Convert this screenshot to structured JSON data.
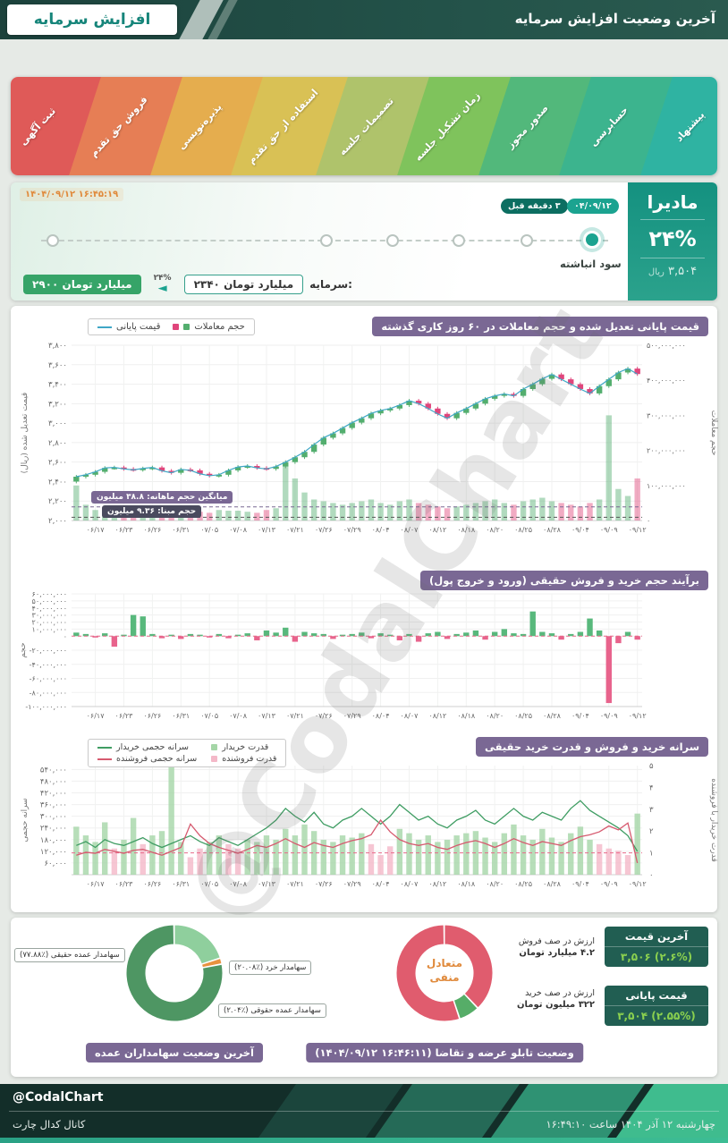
{
  "theme": {
    "teal": "#1ba390",
    "dark_teal": "#0c6e61",
    "green": "#36a468",
    "orange": "#e08a3c",
    "chip_purple": "#7a6894",
    "dark_badge": "#4a4a5e",
    "badge_text_teal": "#16857a",
    "price_badge_bg": "#215e52",
    "price_value_green": "#8bd14f"
  },
  "header": {
    "badge": "افزایش سرمایه",
    "title": "آخرین وضعیت افزایش سرمایه"
  },
  "ribbon": {
    "stages": [
      {
        "label": "پیشنهاد",
        "color": "#2fb3a2"
      },
      {
        "label": "حسابرسی",
        "color": "#3cb48e"
      },
      {
        "label": "صدور مجوز",
        "color": "#52b87b"
      },
      {
        "label": "زمان تشکیل جلسه",
        "color": "#7fc35c"
      },
      {
        "label": "تصمیمات جلسه",
        "color": "#afc36b"
      },
      {
        "label": "استفاده از حق تقدم",
        "color": "#d9c155"
      },
      {
        "label": "پذیره‌نویسی",
        "color": "#e5ad4e"
      },
      {
        "label": "فروش حق تقدم",
        "color": "#e67e55"
      },
      {
        "label": "ثبت آگهی",
        "color": "#df5a58"
      }
    ]
  },
  "timeline": {
    "timestamp": "۱۴۰۴/۰۹/۱۲ ۱۶:۴۵:۱۹",
    "active_date": "۰۴/۰۹/۱۲",
    "ago": "۳ دقیقه قبل",
    "active_label": "سود انباشته",
    "symbol": "مادیرا",
    "percent": "۲۴%",
    "price": "۳,۵۰۴",
    "rial": "ریال",
    "capital_label": "سرمایه:",
    "capital_before": "۲۳۴۰ میلیارد تومان",
    "capital_after": "۲۹۰۰ میلیارد تومان",
    "capital_change": "۲۴%"
  },
  "watermark": "@CodalChart",
  "chart_data": [
    {
      "type": "candlestick+volume",
      "title": "قیمت پایانی تعدیل شده و حجم معاملات در ۶۰ روز کاری گذشته",
      "legend_price": "قیمت پایانی",
      "legend_volume": "حجم معاملات",
      "ylabel_left": "قیمت تعدیل شده (ریال)",
      "ylabel_right": "حجم معاملات",
      "ylim_price": [
        2000,
        3800
      ],
      "price_ticks": [
        2000,
        2200,
        2400,
        2600,
        2800,
        3000,
        3200,
        3400,
        3600,
        3800
      ],
      "volume_ticks_million": [
        0,
        100,
        200,
        300,
        400,
        500
      ],
      "volume_max_million": 500,
      "open_first": 2400,
      "x_labels": [
        "۰۶/۱۷",
        "۰۶/۲۳",
        "۰۶/۲۶",
        "۰۶/۳۱",
        "۰۷/۰۵",
        "۰۷/۰۸",
        "۰۷/۱۳",
        "۰۷/۲۱",
        "۰۷/۲۶",
        "۰۷/۲۹",
        "۰۸/۰۴",
        "۰۸/۰۷",
        "۰۸/۱۲",
        "۰۸/۱۸",
        "۰۸/۲۰",
        "۰۸/۲۵",
        "۰۸/۲۸",
        "۰۹/۰۴",
        "۰۹/۰۹",
        "۰۹/۱۲"
      ],
      "closes": [
        2450,
        2470,
        2500,
        2540,
        2545,
        2530,
        2520,
        2535,
        2545,
        2510,
        2490,
        2525,
        2515,
        2480,
        2460,
        2470,
        2515,
        2550,
        2560,
        2540,
        2530,
        2555,
        2600,
        2650,
        2705,
        2780,
        2850,
        2895,
        2950,
        3005,
        3050,
        3100,
        3130,
        3150,
        3185,
        3230,
        3200,
        3150,
        3095,
        3050,
        3105,
        3150,
        3200,
        3250,
        3280,
        3300,
        3280,
        3350,
        3400,
        3455,
        3500,
        3450,
        3400,
        3350,
        3305,
        3380,
        3450,
        3520,
        3560,
        3504
      ],
      "volumes_million": [
        100,
        45,
        30,
        35,
        28,
        25,
        30,
        28,
        26,
        30,
        35,
        30,
        28,
        25,
        22,
        30,
        28,
        28,
        25,
        22,
        30,
        35,
        160,
        120,
        80,
        60,
        55,
        50,
        45,
        50,
        55,
        60,
        50,
        45,
        55,
        60,
        50,
        45,
        40,
        35,
        40,
        45,
        50,
        55,
        60,
        50,
        45,
        55,
        60,
        65,
        55,
        50,
        45,
        40,
        50,
        60,
        300,
        90,
        70,
        120
      ],
      "avg_volume_label": "میانگین حجم ماهانه: ۳۸.۸ میلیون",
      "avg_volume_million": 38.8,
      "base_volume_label": "حجم مبنا: ۹.۳۶ میلیون",
      "base_volume_million": 9.36,
      "color_up": "#53ae6e",
      "color_down": "#e0457b",
      "color_line": "#3fa7c6"
    },
    {
      "type": "bar",
      "title": "برآیند حجم خرید و فروش حقیقی (ورود و خروج پول)",
      "ylabel": "حجم",
      "unit": "million",
      "ylim_million": [
        -100,
        60
      ],
      "ticks_million": [
        60,
        50,
        40,
        30,
        20,
        10,
        0,
        -20,
        -40,
        -60,
        -80,
        -100
      ],
      "values_million": [
        5,
        3,
        -2,
        4,
        -15,
        2,
        30,
        28,
        3,
        -3,
        2,
        -4,
        3,
        2,
        -2,
        3,
        -3,
        2,
        4,
        -6,
        8,
        5,
        12,
        -8,
        6,
        4,
        3,
        -4,
        2,
        3,
        5,
        -3,
        4,
        2,
        -6,
        3,
        -8,
        4,
        6,
        -4,
        3,
        5,
        8,
        -5,
        6,
        10,
        4,
        3,
        35,
        6,
        4,
        -5,
        3,
        6,
        25,
        8,
        -95,
        -10,
        6,
        -5
      ],
      "color_pos": "#58b87c",
      "color_neg": "#e8638c"
    },
    {
      "type": "line+bar",
      "title": "سرانه خرید و فروش و قدرت خرید حقیقی",
      "ylabel_left": "سرانه حجمی",
      "ylabel_right": "قدرت خریدار با فروشنده",
      "legend": [
        {
          "label": "سرانه حجمی خریدار",
          "kind": "line",
          "color": "#3f9d63"
        },
        {
          "label": "سرانه حجمی فروشنده",
          "kind": "line",
          "color": "#d65a6f"
        },
        {
          "label": "قدرت خریدار",
          "kind": "bar",
          "color": "#a5d6a7"
        },
        {
          "label": "قدرت فروشنده",
          "kind": "bar",
          "color": "#f4b8c8"
        }
      ],
      "ylim_left": [
        0,
        560000
      ],
      "left_ticks": [
        60000,
        120000,
        180000,
        240000,
        300000,
        360000,
        420000,
        480000,
        540000
      ],
      "ylim_right": [
        0,
        5
      ],
      "right_ticks": [
        0,
        1,
        2,
        3,
        4,
        5
      ],
      "ref_line_ratio": 1,
      "bar_color_threshold": 1.5,
      "buyer_per_capita_thousand": [
        150,
        170,
        140,
        180,
        160,
        150,
        170,
        190,
        160,
        140,
        160,
        180,
        200,
        170,
        150,
        190,
        170,
        150,
        180,
        210,
        240,
        280,
        340,
        300,
        270,
        320,
        260,
        240,
        280,
        300,
        340,
        300,
        260,
        300,
        360,
        320,
        280,
        300,
        260,
        240,
        280,
        300,
        330,
        280,
        260,
        300,
        340,
        300,
        280,
        320,
        300,
        280,
        340,
        380,
        330,
        300,
        270,
        240,
        200,
        120
      ],
      "seller_per_capita_thousand": [
        100,
        115,
        110,
        130,
        120,
        110,
        125,
        130,
        115,
        100,
        120,
        140,
        260,
        200,
        160,
        140,
        125,
        110,
        130,
        150,
        140,
        160,
        185,
        160,
        140,
        165,
        150,
        140,
        160,
        175,
        185,
        205,
        280,
        220,
        180,
        160,
        150,
        160,
        140,
        130,
        150,
        165,
        175,
        160,
        140,
        160,
        185,
        165,
        150,
        170,
        160,
        150,
        175,
        195,
        205,
        220,
        250,
        230,
        265,
        60
      ],
      "power_ratio": [
        2.2,
        1.8,
        1.5,
        2.4,
        1.2,
        1.6,
        2.6,
        1.4,
        1.8,
        2.0,
        5.0,
        1.5,
        0.8,
        1.2,
        1.5,
        1.8,
        1.4,
        1.2,
        1.6,
        1.5,
        1.8,
        1.6,
        2.1,
        1.8,
        2.3,
        2.0,
        1.6,
        1.5,
        1.8,
        1.7,
        1.9,
        1.4,
        0.9,
        1.3,
        2.1,
        1.9,
        1.6,
        1.8,
        1.5,
        1.6,
        1.8,
        1.9,
        2.0,
        1.7,
        1.5,
        1.9,
        2.3,
        1.8,
        1.6,
        2.1,
        1.7,
        1.5,
        1.9,
        2.2,
        1.6,
        1.4,
        1.2,
        1.1,
        0.9,
        2.8
      ]
    },
    {
      "type": "pie",
      "title": "آخرین وضعیت سهامداران عمده",
      "slices": [
        {
          "label": "سهامدار خرد (٪۲۰.۰۸)",
          "value": 20.08,
          "color": "#8fcf9d"
        },
        {
          "label": "سهامدار عمده حقوقی (٪۲.۰۴)",
          "value": 2.04,
          "color": "#e8923f"
        },
        {
          "label": "سهامدار عمده حقیقی (٪۷۷.۸۸)",
          "value": 77.88,
          "color": "#4e9663"
        }
      ]
    },
    {
      "type": "pie",
      "title": "وضعیت تابلو عرضه و تقاضا (۱۶:۴۶:۱۱ ۱۴۰۴/۰۹/۱۲)",
      "center": [
        "متعادل",
        "منفی"
      ],
      "sell": {
        "label": "ارزش در صف فروش",
        "value": "۴.۲ میلیارد تومان",
        "color": "#e05c6e"
      },
      "buy": {
        "label": "ارزش در صف خرید",
        "value": "۳۲۲ میلیون تومان",
        "color": "#56ad68"
      },
      "slices": [
        {
          "value": 38,
          "color": "#e05c6e"
        },
        {
          "value": 7,
          "color": "#56ad68"
        },
        {
          "value": 55,
          "color": "#e05c6e"
        }
      ]
    }
  ],
  "prices": [
    {
      "title": "آخرین قیمت",
      "value": "۳,۵۰۶ (۲.۶%)"
    },
    {
      "title": "قیمت پایانی",
      "value": "۳,۵۰۴ (۲.۵۵%)"
    }
  ],
  "footer": {
    "handle": "@CodalChart",
    "channel": "کانال کدال چارت",
    "datetime": "چهارشنبه ۱۲ آذر ۱۴۰۴ ساعت ۱۶:۴۹:۱۰"
  }
}
